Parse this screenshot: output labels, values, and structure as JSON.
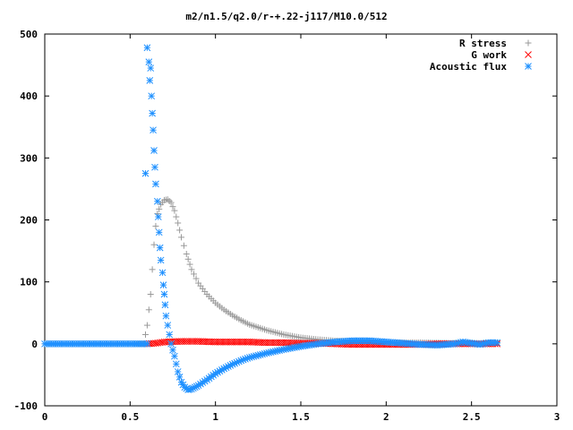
{
  "chart_data": {
    "type": "scatter",
    "title": "m2/n1.5/q2.0/r-+.22-j117/M10.0/512",
    "xlabel": "",
    "ylabel": "",
    "xlim": [
      0,
      3
    ],
    "ylim": [
      -100,
      500
    ],
    "xticks": [
      "0",
      "0.5",
      "1",
      "1.5",
      "2",
      "2.5",
      "3"
    ],
    "yticks": [
      "-100",
      "0",
      "100",
      "200",
      "300",
      "400",
      "500"
    ],
    "grid": false,
    "legend_position": "top-right",
    "series": [
      {
        "name": "R stress",
        "marker": "plus",
        "color": "#999999",
        "points": [
          [
            0.0,
            0
          ],
          [
            0.1,
            0
          ],
          [
            0.2,
            0
          ],
          [
            0.3,
            0
          ],
          [
            0.4,
            0
          ],
          [
            0.5,
            0
          ],
          [
            0.58,
            0
          ],
          [
            0.6,
            30
          ],
          [
            0.61,
            55
          ],
          [
            0.62,
            80
          ],
          [
            0.63,
            120
          ],
          [
            0.64,
            160
          ],
          [
            0.65,
            190
          ],
          [
            0.66,
            210
          ],
          [
            0.68,
            225
          ],
          [
            0.7,
            232
          ],
          [
            0.72,
            233
          ],
          [
            0.74,
            228
          ],
          [
            0.76,
            215
          ],
          [
            0.78,
            195
          ],
          [
            0.8,
            172
          ],
          [
            0.83,
            145
          ],
          [
            0.86,
            120
          ],
          [
            0.9,
            98
          ],
          [
            0.95,
            80
          ],
          [
            1.0,
            66
          ],
          [
            1.05,
            55
          ],
          [
            1.1,
            46
          ],
          [
            1.15,
            38
          ],
          [
            1.2,
            31
          ],
          [
            1.3,
            22
          ],
          [
            1.4,
            15
          ],
          [
            1.5,
            10
          ],
          [
            1.6,
            7
          ],
          [
            1.7,
            5
          ],
          [
            1.8,
            4
          ],
          [
            1.9,
            3
          ],
          [
            2.0,
            2
          ],
          [
            2.2,
            2
          ],
          [
            2.4,
            1
          ],
          [
            2.65,
            1
          ]
        ]
      },
      {
        "name": "G work",
        "marker": "cross",
        "color": "#ff0000",
        "points": [
          [
            0.6,
            0
          ],
          [
            0.65,
            1
          ],
          [
            0.7,
            3
          ],
          [
            0.8,
            4
          ],
          [
            0.9,
            4
          ],
          [
            1.0,
            3
          ],
          [
            1.1,
            3
          ],
          [
            1.2,
            3
          ],
          [
            1.3,
            2
          ],
          [
            1.4,
            2
          ],
          [
            1.5,
            1
          ],
          [
            1.6,
            1
          ],
          [
            1.7,
            0
          ],
          [
            1.8,
            -1
          ],
          [
            1.9,
            -1
          ],
          [
            2.0,
            -1
          ],
          [
            2.1,
            -1
          ],
          [
            2.2,
            -1
          ],
          [
            2.3,
            0
          ],
          [
            2.4,
            0
          ],
          [
            2.5,
            0
          ],
          [
            2.65,
            0
          ]
        ]
      },
      {
        "name": "Acoustic flux",
        "marker": "star",
        "color": "#1e90ff",
        "points": [
          [
            0.0,
            0
          ],
          [
            0.1,
            0
          ],
          [
            0.2,
            0
          ],
          [
            0.3,
            0
          ],
          [
            0.4,
            0
          ],
          [
            0.5,
            0
          ],
          [
            0.6,
            0
          ],
          [
            0.59,
            275
          ],
          [
            0.6,
            478
          ],
          [
            0.61,
            455
          ],
          [
            0.615,
            425
          ],
          [
            0.62,
            445
          ],
          [
            0.625,
            400
          ],
          [
            0.63,
            372
          ],
          [
            0.635,
            345
          ],
          [
            0.64,
            312
          ],
          [
            0.645,
            285
          ],
          [
            0.65,
            258
          ],
          [
            0.66,
            230
          ],
          [
            0.665,
            205
          ],
          [
            0.67,
            180
          ],
          [
            0.675,
            155
          ],
          [
            0.68,
            135
          ],
          [
            0.69,
            115
          ],
          [
            0.695,
            95
          ],
          [
            0.7,
            80
          ],
          [
            0.705,
            63
          ],
          [
            0.71,
            45
          ],
          [
            0.72,
            30
          ],
          [
            0.73,
            15
          ],
          [
            0.74,
            0
          ],
          [
            0.76,
            -20
          ],
          [
            0.78,
            -45
          ],
          [
            0.8,
            -62
          ],
          [
            0.82,
            -70
          ],
          [
            0.84,
            -74
          ],
          [
            0.86,
            -73
          ],
          [
            0.88,
            -70
          ],
          [
            0.9,
            -67
          ],
          [
            0.95,
            -58
          ],
          [
            1.0,
            -48
          ],
          [
            1.05,
            -40
          ],
          [
            1.1,
            -33
          ],
          [
            1.15,
            -27
          ],
          [
            1.2,
            -22
          ],
          [
            1.3,
            -15
          ],
          [
            1.4,
            -9
          ],
          [
            1.5,
            -4
          ],
          [
            1.6,
            0
          ],
          [
            1.7,
            3
          ],
          [
            1.8,
            5
          ],
          [
            1.85,
            5
          ],
          [
            1.9,
            5
          ],
          [
            2.0,
            3
          ],
          [
            2.1,
            1
          ],
          [
            2.2,
            -1
          ],
          [
            2.3,
            -2
          ],
          [
            2.4,
            0
          ],
          [
            2.45,
            3
          ],
          [
            2.5,
            1
          ],
          [
            2.55,
            -1
          ],
          [
            2.6,
            2
          ],
          [
            2.65,
            2
          ]
        ]
      }
    ]
  }
}
